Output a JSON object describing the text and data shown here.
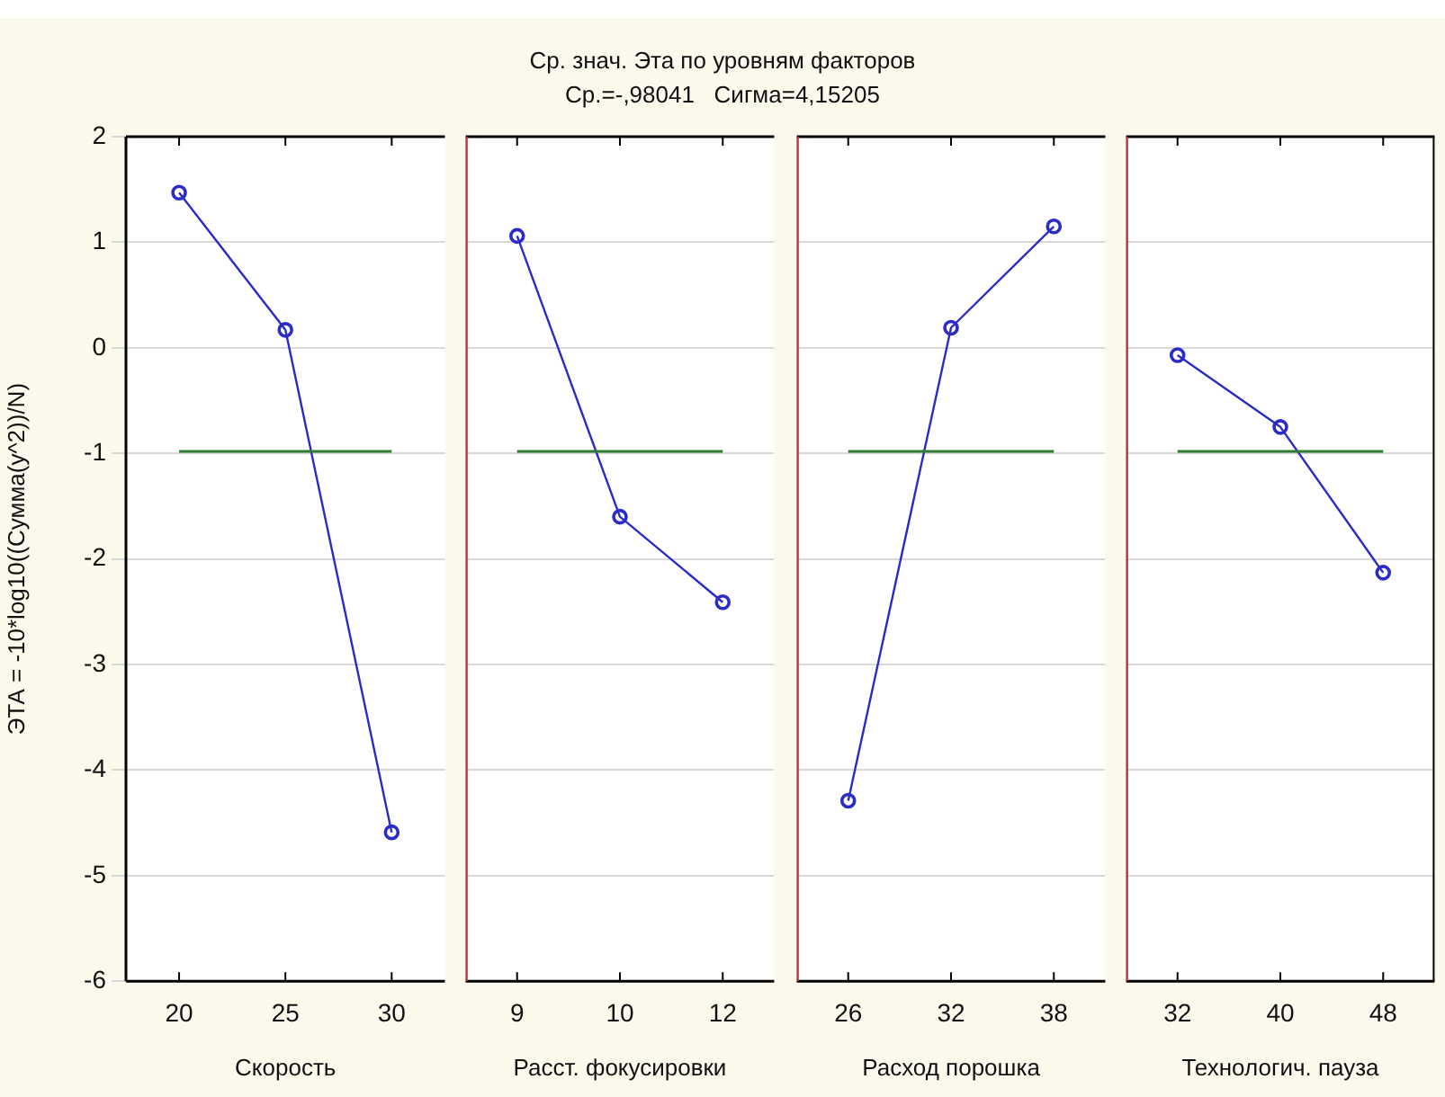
{
  "chart_data": [
    {
      "type": "other",
      "title": "Ср. знач. Эта по уровням факторов",
      "subtitle": "Ср.=-,98041   Сигма=4,15205"
    },
    {
      "type": "line",
      "xlabel": "Скорость",
      "ylabel": "ЭТА = -10*log10((Сумма(y^2))/N)",
      "categories": [
        "20",
        "25",
        "30"
      ],
      "series": [
        {
          "color": "#2b2bc8",
          "values": [
            1.47,
            0.17,
            -4.59
          ]
        }
      ],
      "ylim": [
        -6,
        2
      ],
      "yticks": [
        -6,
        -5,
        -4,
        -3,
        -2,
        -1,
        0,
        1,
        2
      ],
      "grid": "y",
      "marker": "circle",
      "line_style": "solid",
      "ref_lines": [
        {
          "axis": "y",
          "value": -0.98041,
          "color": "#2e7d32"
        }
      ]
    },
    {
      "type": "line",
      "xlabel": "Расст. фокусировки",
      "categories": [
        "9",
        "10",
        "12"
      ],
      "series": [
        {
          "color": "#2b2bc8",
          "values": [
            1.06,
            -1.6,
            -2.41
          ]
        }
      ],
      "ylim": [
        -6,
        2
      ],
      "yticks": [
        -6,
        -5,
        -4,
        -3,
        -2,
        -1,
        0,
        1,
        2
      ],
      "tick_labels": "x",
      "grid": "y",
      "marker": "circle",
      "line_style": "solid",
      "ref_lines": [
        {
          "axis": "y",
          "value": -0.98041,
          "color": "#2e7d32"
        }
      ]
    },
    {
      "type": "line",
      "xlabel": "Расход порошка",
      "categories": [
        "26",
        "32",
        "38"
      ],
      "series": [
        {
          "color": "#2b2bc8",
          "values": [
            -4.29,
            0.19,
            1.15
          ]
        }
      ],
      "ylim": [
        -6,
        2
      ],
      "yticks": [
        -6,
        -5,
        -4,
        -3,
        -2,
        -1,
        0,
        1,
        2
      ],
      "tick_labels": "x",
      "grid": "y",
      "marker": "circle",
      "line_style": "solid",
      "ref_lines": [
        {
          "axis": "y",
          "value": -0.98041,
          "color": "#2e7d32"
        }
      ]
    },
    {
      "type": "line",
      "xlabel": "Технологич. пауза",
      "categories": [
        "32",
        "40",
        "48"
      ],
      "series": [
        {
          "color": "#2b2bc8",
          "values": [
            -0.07,
            -0.75,
            -2.13
          ]
        }
      ],
      "ylim": [
        -6,
        2
      ],
      "yticks": [
        -6,
        -5,
        -4,
        -3,
        -2,
        -1,
        0,
        1,
        2
      ],
      "tick_labels": "x",
      "grid": "y",
      "marker": "circle",
      "line_style": "solid",
      "ref_lines": [
        {
          "axis": "y",
          "value": -0.98041,
          "color": "#2e7d32"
        }
      ]
    }
  ]
}
